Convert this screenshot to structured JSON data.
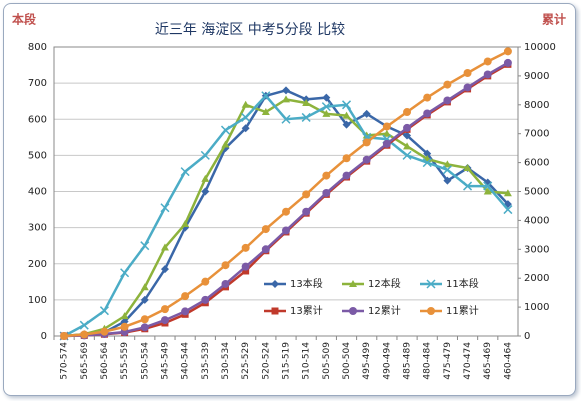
{
  "chart_data": {
    "type": "line",
    "title": "近三年 海淀区 中考5分段 比较",
    "ylabel": "本段",
    "y2label": "累计",
    "categories": [
      "570-574",
      "565-569",
      "560-564",
      "555-559",
      "550-554",
      "545-549",
      "540-544",
      "535-539",
      "530-534",
      "525-529",
      "520-524",
      "515-519",
      "510-514",
      "505-509",
      "500-504",
      "495-499",
      "490-494",
      "485-489",
      "480-484",
      "475-479",
      "470-474",
      "465-469",
      "460-464"
    ],
    "ylim": [
      0,
      800
    ],
    "yticks": [
      0,
      100,
      200,
      300,
      400,
      500,
      600,
      700,
      800
    ],
    "y2lim": [
      0,
      10000
    ],
    "y2ticks": [
      0,
      1000,
      2000,
      3000,
      4000,
      5000,
      6000,
      7000,
      8000,
      9000,
      10000
    ],
    "grid": true,
    "series": [
      {
        "name": "13本段",
        "color": "#3a67a8",
        "marker": "diamond",
        "values": [
          0,
          5,
          10,
          40,
          100,
          185,
          300,
          400,
          520,
          575,
          665,
          680,
          655,
          660,
          585,
          615,
          580,
          555,
          505,
          430,
          465,
          425,
          365
        ]
      },
      {
        "name": "12本段",
        "color": "#8db33c",
        "marker": "triangle",
        "values": [
          0,
          5,
          20,
          55,
          135,
          245,
          310,
          435,
          530,
          640,
          620,
          655,
          645,
          615,
          610,
          555,
          560,
          525,
          490,
          475,
          465,
          400,
          395
        ]
      },
      {
        "name": "11本段",
        "color": "#4bacc6",
        "marker": "x",
        "values": [
          0,
          30,
          70,
          175,
          250,
          355,
          455,
          500,
          570,
          605,
          665,
          600,
          605,
          635,
          640,
          550,
          545,
          500,
          480,
          460,
          415,
          415,
          350
        ]
      },
      {
        "name": "13累计",
        "color": "#c0392b",
        "marker": "square",
        "axis": "y2",
        "values": [
          0,
          20,
          60,
          120,
          250,
          450,
          750,
          1150,
          1700,
          2250,
          2950,
          3600,
          4250,
          4900,
          5500,
          6050,
          6600,
          7150,
          7650,
          8100,
          8550,
          9000,
          9400
        ]
      },
      {
        "name": "12累计",
        "color": "#7b5aa6",
        "marker": "circle",
        "axis": "y2",
        "values": [
          0,
          20,
          70,
          140,
          300,
          550,
          850,
          1250,
          1800,
          2400,
          3000,
          3650,
          4300,
          4950,
          5550,
          6100,
          6650,
          7200,
          7700,
          8150,
          8600,
          9050,
          9450
        ]
      },
      {
        "name": "11累计",
        "color": "#e8913a",
        "marker": "circle",
        "axis": "y2",
        "values": [
          0,
          50,
          150,
          320,
          580,
          930,
          1380,
          1880,
          2450,
          3050,
          3700,
          4300,
          4900,
          5550,
          6150,
          6700,
          7250,
          7750,
          8250,
          8700,
          9100,
          9500,
          9850
        ]
      }
    ]
  }
}
